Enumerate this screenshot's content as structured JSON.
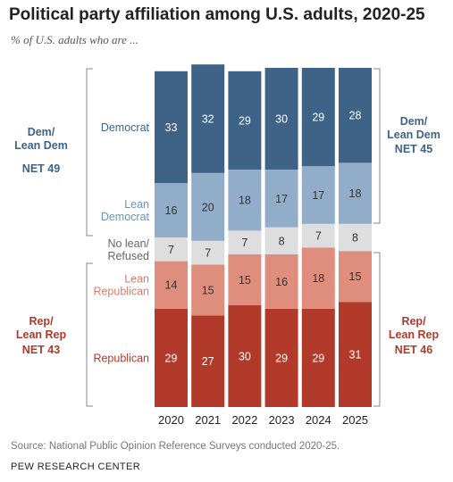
{
  "title": "Political party affiliation among U.S. adults, 2020-25",
  "subtitle": "% of U.S. adults who are ...",
  "source": "Source: National Public Opinion Reference Surveys conducted 2020-25.",
  "footer": "PEW RESEARCH CENTER",
  "groups": {
    "dem_left": {
      "label_line1": "Dem/",
      "label_line2": "Lean Dem",
      "net": "NET 49"
    },
    "rep_left": {
      "label_line1": "Rep/",
      "label_line2": "Lean Rep",
      "net": "NET 43"
    },
    "dem_right": {
      "label_line1": "Dem/",
      "label_line2": "Lean Dem",
      "net": "NET 45"
    },
    "rep_right": {
      "label_line1": "Rep/",
      "label_line2": "Lean Rep",
      "net": "NET 46"
    }
  },
  "chart_data": {
    "type": "bar",
    "stacked": true,
    "categories": [
      "2020",
      "2021",
      "2022",
      "2023",
      "2024",
      "2025"
    ],
    "series": [
      {
        "name": "Republican",
        "values": [
          29,
          27,
          30,
          29,
          29,
          31
        ],
        "color": "#b13a2b",
        "text_color": "#b13a2b",
        "label_lines": [
          "Republican"
        ]
      },
      {
        "name": "Lean Republican",
        "values": [
          14,
          15,
          15,
          16,
          18,
          15
        ],
        "color": "#df8d7c",
        "text_color": "#d37d6a",
        "label_lines": [
          "Lean",
          "Republican"
        ]
      },
      {
        "name": "No lean/ Refused",
        "values": [
          7,
          7,
          7,
          8,
          7,
          8
        ],
        "color": "#dedede",
        "text_color": "#666666",
        "label_lines": [
          "No lean/",
          "Refused"
        ]
      },
      {
        "name": "Lean Democrat",
        "values": [
          16,
          20,
          18,
          17,
          17,
          18
        ],
        "color": "#91adc9",
        "text_color": "#6e92b8",
        "label_lines": [
          "Lean",
          "Democrat"
        ]
      },
      {
        "name": "Democrat",
        "values": [
          33,
          32,
          29,
          30,
          29,
          28
        ],
        "color": "#3e6387",
        "text_color": "#3e6387",
        "label_lines": [
          "Democrat"
        ]
      }
    ],
    "value_label_colors": {
      "Republican": "#ffffff",
      "Lean Republican": "#333333",
      "No lean/ Refused": "#333333",
      "Lean Democrat": "#333333",
      "Democrat": "#ffffff"
    },
    "ylim": [
      0,
      100
    ]
  }
}
